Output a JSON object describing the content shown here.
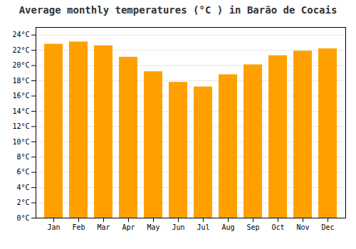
{
  "chart_data": {
    "type": "bar",
    "title": "Average monthly temperatures (°C ) in Barão de Cocais",
    "categories": [
      "Jan",
      "Feb",
      "Mar",
      "Apr",
      "May",
      "Jun",
      "Jul",
      "Aug",
      "Sep",
      "Oct",
      "Nov",
      "Dec"
    ],
    "values": [
      22.8,
      23.1,
      22.6,
      21.1,
      19.2,
      17.8,
      17.2,
      18.8,
      20.1,
      21.3,
      21.9,
      22.2
    ],
    "color": "#FFA000",
    "ylim": [
      0,
      25
    ],
    "yticks": [
      {
        "value": 0,
        "label": "0°C"
      },
      {
        "value": 2,
        "label": "2°C"
      },
      {
        "value": 4,
        "label": "4°C"
      },
      {
        "value": 6,
        "label": "6°C"
      },
      {
        "value": 8,
        "label": "8°C"
      },
      {
        "value": 10,
        "label": "10°C"
      },
      {
        "value": 12,
        "label": "12°C"
      },
      {
        "value": 14,
        "label": "14°C"
      },
      {
        "value": 16,
        "label": "16°C"
      },
      {
        "value": 18,
        "label": "18°C"
      },
      {
        "value": 20,
        "label": "20°C"
      },
      {
        "value": 22,
        "label": "22°C"
      },
      {
        "value": 24,
        "label": "24°C"
      }
    ],
    "grid": true
  }
}
